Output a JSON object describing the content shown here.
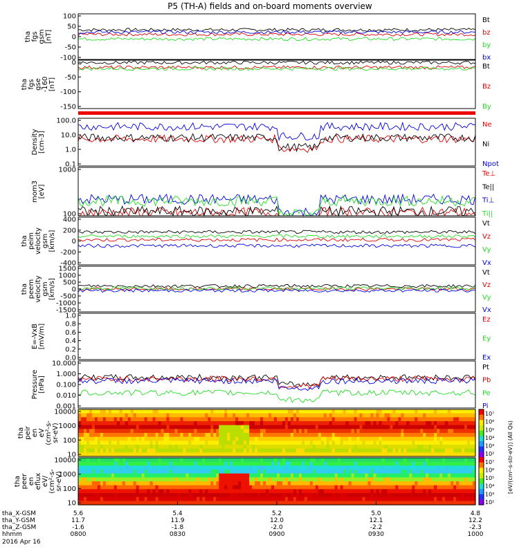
{
  "title": "P5 (TH-A) fields and on-board moments overview",
  "colors": {
    "black": "#000000",
    "red": "#e00000",
    "green": "#22dd22",
    "blue": "#0000e0"
  },
  "time_axis": {
    "tick_labels": [
      "0800",
      "0830",
      "0900",
      "0930",
      "1000"
    ],
    "rows": [
      {
        "label": "tha_X-GSM",
        "values": [
          "5.6",
          "5.4",
          "5.2",
          "5.0",
          "4.8"
        ]
      },
      {
        "label": "tha_Y-GSM",
        "values": [
          "11.7",
          "11.9",
          "12.0",
          "12.1",
          "12.2"
        ]
      },
      {
        "label": "tha_Z-GSM",
        "values": [
          "-1.6",
          "-1.8",
          "-2.0",
          "-2.2",
          "-2.3"
        ]
      },
      {
        "label": "hhmm",
        "values": [
          "0800",
          "0830",
          "0900",
          "0930",
          "1000"
        ]
      }
    ],
    "date": "2016 Apr 16"
  },
  "chart_data": [
    {
      "type": "line",
      "ylabel": [
        "tha",
        "fgs",
        "gsm",
        "[nT]"
      ],
      "ylim": [
        -100,
        100
      ],
      "ticks": [
        "100",
        "50",
        "0",
        "-50",
        "-100"
      ],
      "series": [
        {
          "name": "Bt",
          "color": "black",
          "level": 30
        },
        {
          "name": "bz",
          "color": "red",
          "level": 10
        },
        {
          "name": "by",
          "color": "green",
          "level": -10
        },
        {
          "name": "bx",
          "color": "blue",
          "level": 20
        }
      ]
    },
    {
      "type": "line",
      "ylabel": [
        "tha",
        "fgs",
        "gse",
        "-160",
        "[nT]"
      ],
      "ylim": [
        -175,
        25
      ],
      "ticks": [
        "0",
        "-50",
        "-100",
        "-150"
      ],
      "series": [
        {
          "name": "Bt",
          "color": "black",
          "level": 15
        },
        {
          "name": "Bz",
          "color": "red",
          "level": -5
        },
        {
          "name": "By",
          "color": "green",
          "level": -10
        }
      ]
    },
    {
      "type": "line",
      "log": true,
      "ylabel": [
        "Density",
        "[cm-3]"
      ],
      "ylim": [
        0.1,
        100
      ],
      "ticks": [
        "100.0",
        "10.0",
        "1.0",
        "0.1"
      ],
      "series": [
        {
          "name": "Ne",
          "color": "red",
          "level": 5
        },
        {
          "name": "Ni",
          "color": "black",
          "level": 6
        },
        {
          "name": "Npot",
          "color": "blue",
          "level": 30
        }
      ]
    },
    {
      "type": "line",
      "log": true,
      "ylabel": [
        "mom3",
        "[eV]"
      ],
      "ylim": [
        50,
        10000
      ],
      "ticks": [
        "1000",
        "100"
      ],
      "series": [
        {
          "name": "Te⊥",
          "color": "red",
          "level": 70
        },
        {
          "name": "Te||",
          "color": "black",
          "level": 80
        },
        {
          "name": "Ti⊥",
          "color": "blue",
          "level": 300
        },
        {
          "name": "Ti||",
          "color": "green",
          "level": 250
        }
      ]
    },
    {
      "type": "line",
      "ylabel": [
        "tha",
        "peim",
        "velocity",
        "gsm",
        "[km/s]"
      ],
      "ylim": [
        -400,
        400
      ],
      "ticks": [
        "400",
        "200",
        "0",
        "-200",
        "-400"
      ],
      "series": [
        {
          "name": "Vt",
          "color": "black",
          "level": 150
        },
        {
          "name": "Vz",
          "color": "red",
          "level": 20
        },
        {
          "name": "Vy",
          "color": "green",
          "level": 80
        },
        {
          "name": "Vx",
          "color": "blue",
          "level": -80
        }
      ]
    },
    {
      "type": "line",
      "ylabel": [
        "tha",
        "peem",
        "velocity",
        "gsm",
        "[km/s]"
      ],
      "ylim": [
        -1500,
        1500
      ],
      "ticks": [
        "1500",
        "1000",
        "500",
        "0",
        "-500",
        "-1000",
        "-1500"
      ],
      "series": [
        {
          "name": "Vt",
          "color": "black",
          "level": 200
        },
        {
          "name": "Vz",
          "color": "red",
          "level": 0
        },
        {
          "name": "Vy",
          "color": "green",
          "level": 50
        },
        {
          "name": "Vx",
          "color": "blue",
          "level": -100
        }
      ]
    },
    {
      "type": "line",
      "ylabel": [
        "E=-VxB",
        "[mV/m]"
      ],
      "ylim": [
        0,
        1
      ],
      "ticks": [
        "1.0",
        "0.8",
        "0.6",
        "0.4",
        "0.2",
        "0.0"
      ],
      "series": [
        {
          "name": "Ez",
          "color": "red"
        },
        {
          "name": "Ey",
          "color": "green"
        },
        {
          "name": "Ex",
          "color": "blue"
        }
      ]
    },
    {
      "type": "line",
      "log": true,
      "ylabel": [
        "Pressure",
        "[nPa]"
      ],
      "ylim": [
        0.001,
        10
      ],
      "ticks": [
        "10.000",
        "1.000",
        "0.100",
        "0.010",
        "0.001"
      ],
      "series": [
        {
          "name": "Pt",
          "color": "black",
          "level": 0.4
        },
        {
          "name": "Pb",
          "color": "red",
          "level": 0.3
        },
        {
          "name": "Pe",
          "color": "green",
          "level": 0.02
        },
        {
          "name": "Pi",
          "color": "blue",
          "level": 0.2
        }
      ]
    },
    {
      "type": "heatmap",
      "ylabel": [
        "tha",
        "peir",
        "en",
        "eV",
        "(cm²-s-",
        "sr-eV)"
      ],
      "ticks": [
        "10000",
        "1000",
        "100",
        "10"
      ]
    },
    {
      "type": "heatmap",
      "ylabel": [
        "tha",
        "peer",
        "en",
        "eflux",
        "eV/",
        "(cm²-s-",
        "sr-eV)"
      ],
      "ticks": [
        "10000",
        "1000",
        "100",
        "10"
      ]
    }
  ],
  "colorbar": {
    "ticks": [
      "10⁷",
      "10⁶",
      "10⁵",
      "10⁴",
      "10³",
      "10²",
      "10⁷",
      "10⁶",
      "10⁵",
      "10⁴",
      "10³",
      "10²"
    ],
    "label": "[eV/(cm²-s-str-eV)] (All Qs)"
  }
}
